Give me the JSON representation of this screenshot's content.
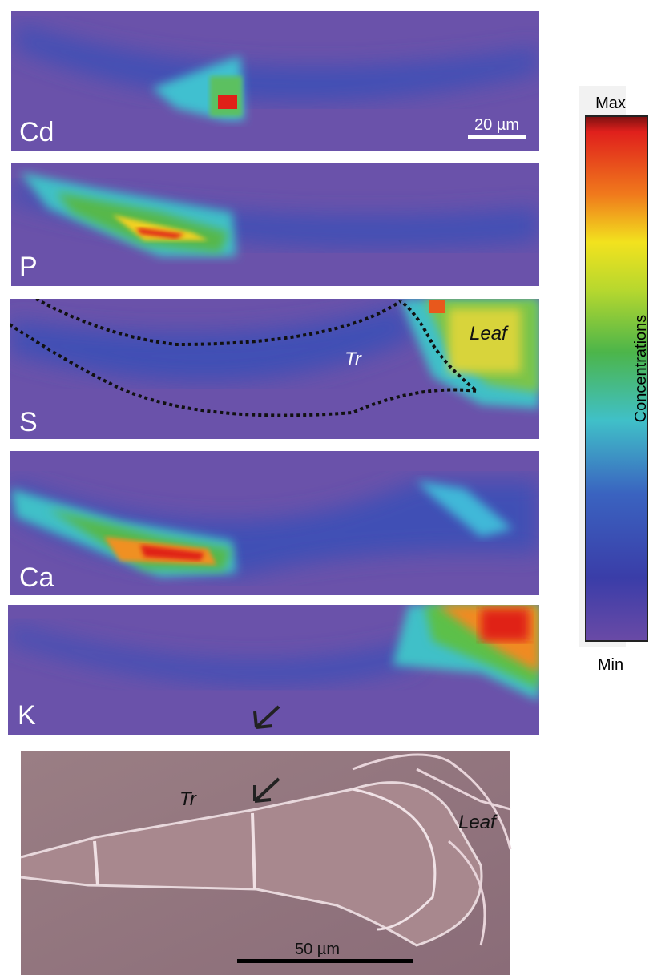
{
  "panels": [
    {
      "label": "Cd",
      "scale_bar": "20 µm"
    },
    {
      "label": "P"
    },
    {
      "label": "S",
      "annotations": [
        "Tr",
        "Leaf"
      ]
    },
    {
      "label": "Ca"
    },
    {
      "label": "K"
    }
  ],
  "colorbar": {
    "max": "Max",
    "min": "Min",
    "title": "Concentrations"
  },
  "micrograph": {
    "annotations": [
      "Tr",
      "Leaf"
    ],
    "scale_bar": "50 µm"
  }
}
